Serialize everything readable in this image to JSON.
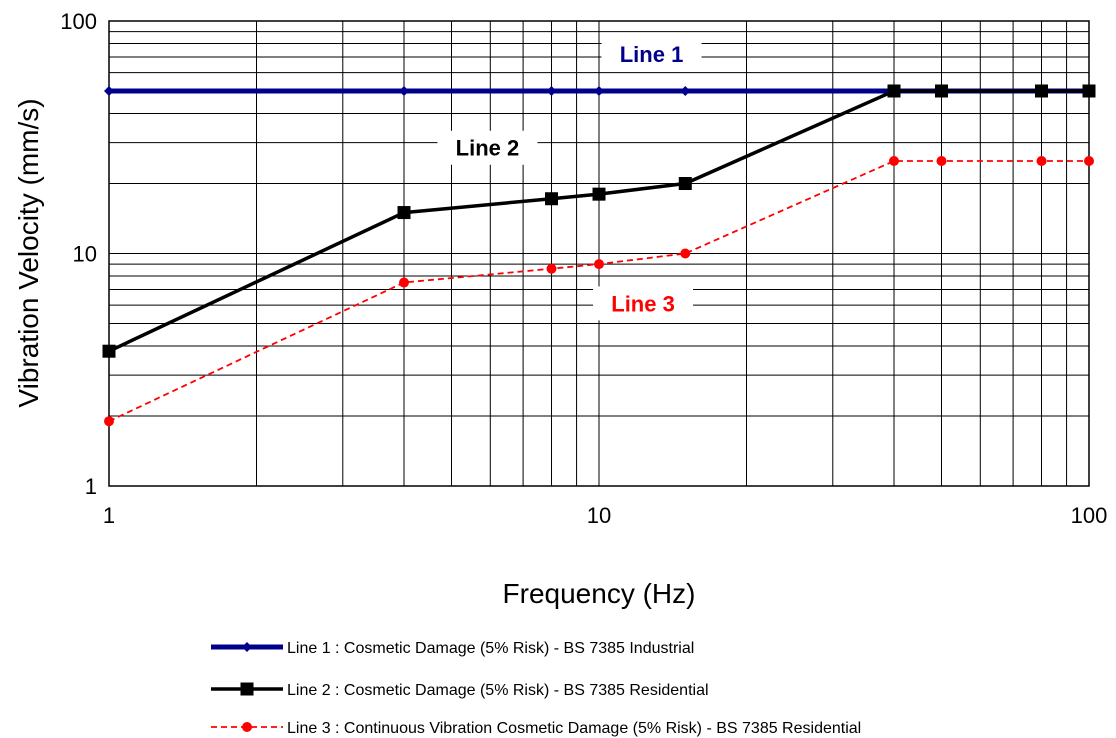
{
  "chart_data": {
    "type": "line",
    "title": "",
    "xlabel": "Frequency (Hz)",
    "ylabel": "Vibration Velocity (mm/s)",
    "xscale": "log",
    "yscale": "log",
    "xlim": [
      1,
      100
    ],
    "ylim": [
      1,
      100
    ],
    "grid": true,
    "x_ticks": [
      "1",
      "10",
      "100"
    ],
    "y_ticks": [
      "1",
      "10",
      "100"
    ],
    "legend_position": "bottom",
    "series": [
      {
        "name": "Line 1 : Cosmetic Damage (5% Risk) - BS 7385 Industrial",
        "label": "Line 1",
        "color": "#00008b",
        "label_color": "#00008b",
        "marker": "diamond",
        "dash": "solid",
        "x": [
          1,
          4,
          8,
          10,
          15,
          40,
          50,
          80,
          100
        ],
        "y": [
          50,
          50,
          50,
          50,
          50,
          50,
          50,
          50,
          50
        ]
      },
      {
        "name": "Line 2 : Cosmetic Damage (5% Risk) - BS 7385 Residential",
        "label": "Line 2",
        "color": "#000000",
        "label_color": "#000000",
        "marker": "square",
        "dash": "solid",
        "x": [
          1,
          4,
          8,
          10,
          15,
          40,
          50,
          80,
          100
        ],
        "y": [
          3.8,
          15,
          17.2,
          18,
          20,
          50,
          50,
          50,
          50
        ]
      },
      {
        "name": "Line 3 : Continuous Vibration Cosmetic Damage (5% Risk) - BS 7385 Residential",
        "label": "Line 3",
        "color": "#ff0000",
        "label_color": "#ff0000",
        "marker": "circle",
        "dash": "dashed",
        "x": [
          1,
          4,
          8,
          10,
          15,
          40,
          50,
          80,
          100
        ],
        "y": [
          1.9,
          7.5,
          8.6,
          9,
          10,
          25,
          25,
          25,
          25
        ]
      }
    ]
  }
}
